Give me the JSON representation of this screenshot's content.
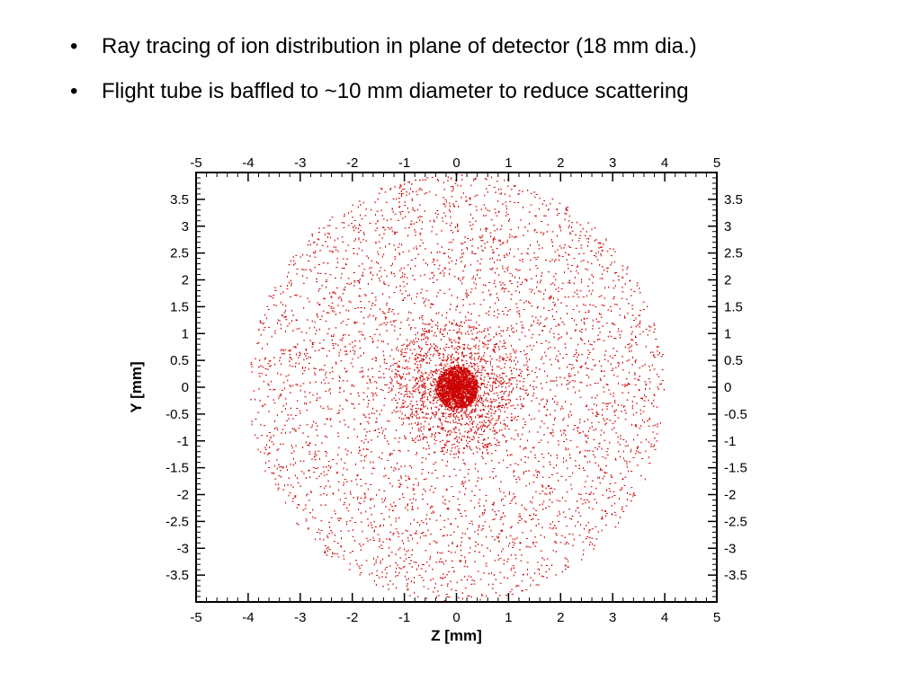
{
  "slide": {
    "bullet_glyph": "•",
    "bullets": [
      "Ray tracing of ion distribution in plane of detector (18 mm dia.)",
      "Flight tube is baffled to ~10 mm diameter to reduce scattering"
    ]
  },
  "chart_data": {
    "type": "scatter",
    "xlabel": "Z [mm]",
    "ylabel": "Y [mm]",
    "xlim": [
      -5,
      5
    ],
    "ylim": [
      -4,
      4
    ],
    "xticks": [
      -5,
      -4,
      -3,
      -2,
      -1,
      0,
      1,
      2,
      3,
      4,
      5
    ],
    "yticks": [
      -3.5,
      -3,
      -2.5,
      -2,
      -1.5,
      -1,
      -0.5,
      0,
      0.5,
      1,
      1.5,
      2,
      2.5,
      3,
      3.5
    ],
    "grid": false,
    "point_color": "#cc0000",
    "series": [
      {
        "distribution": {
          "shape": "disk",
          "center": [
            0,
            0
          ],
          "radius_mm": 4,
          "dense_core_center": [
            0,
            0
          ],
          "dense_core_radius_mm": 0.4
        }
      }
    ]
  }
}
